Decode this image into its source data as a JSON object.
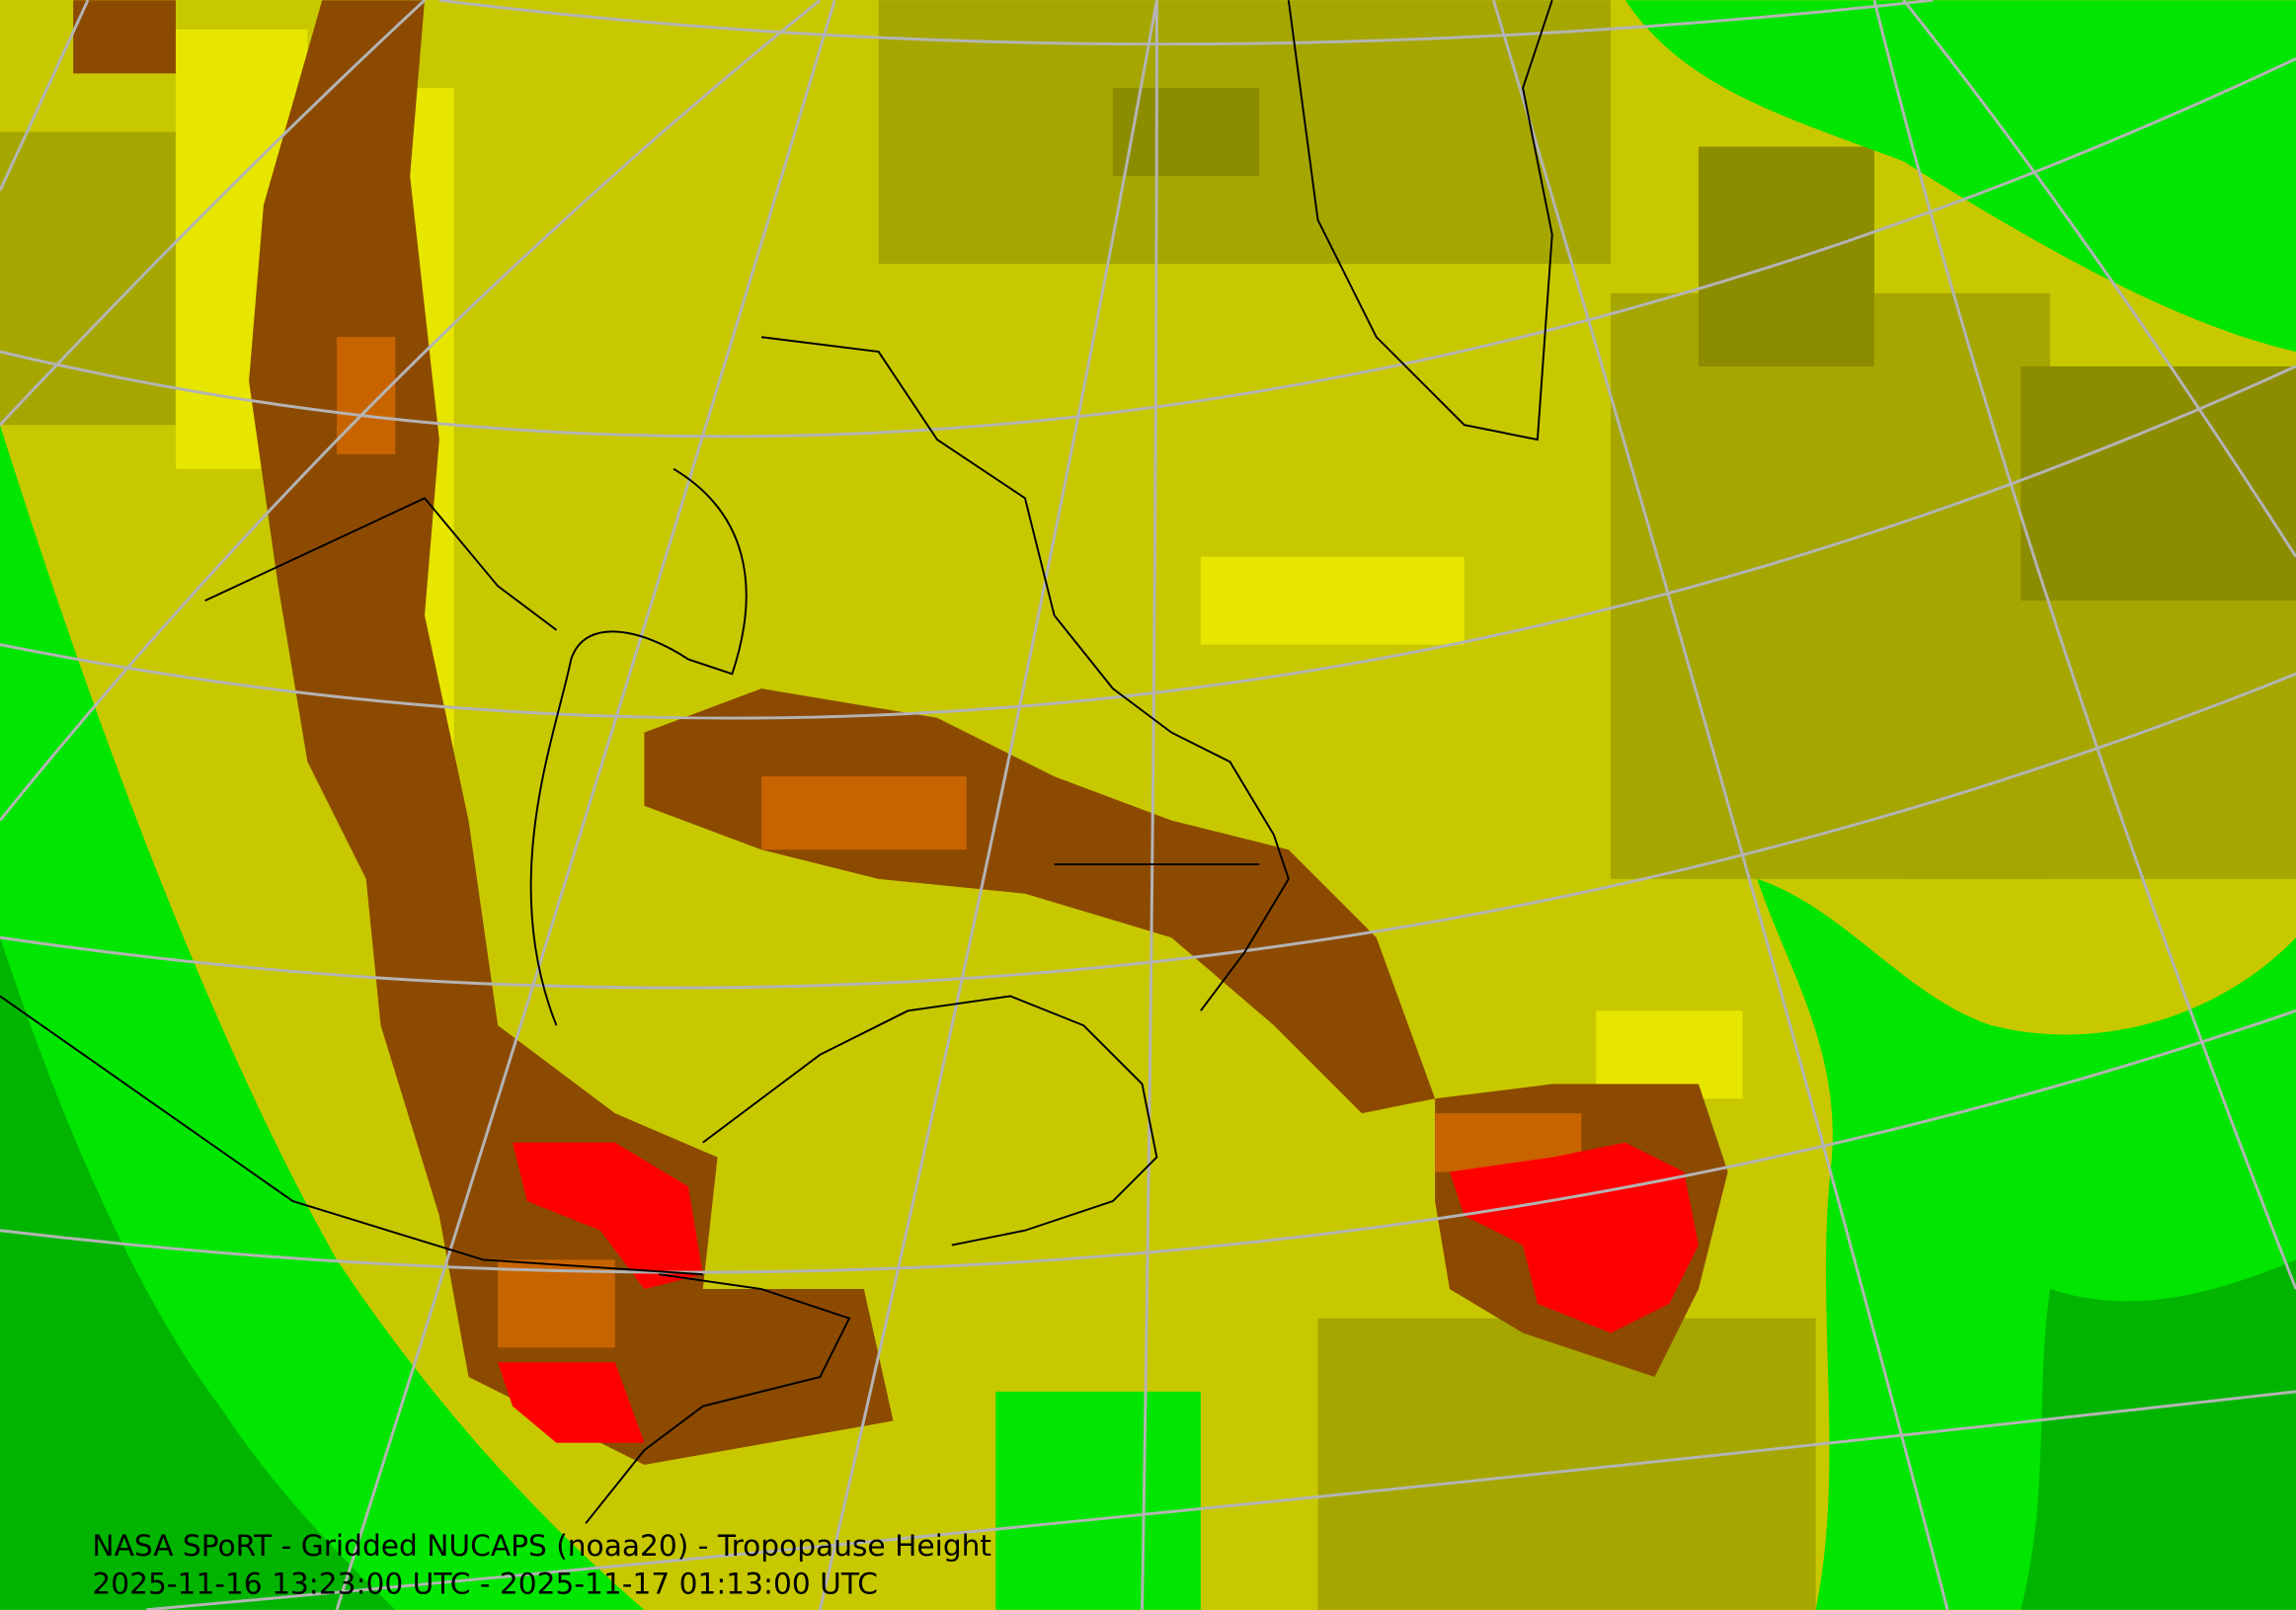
{
  "caption": {
    "title": "NASA SPoRT - Gridded NUCAPS (noaa20) - Tropopause Height",
    "time_range": "2025-11-16 13:23:00 UTC - 2025-11-17 01:13:00 UTC"
  }
}
